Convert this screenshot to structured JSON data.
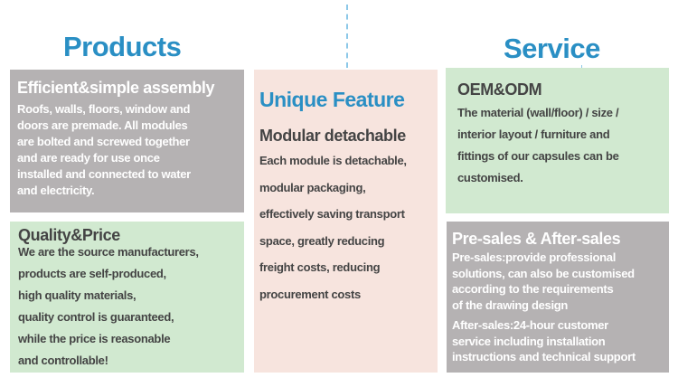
{
  "headers": {
    "products": "Products",
    "service": "Service"
  },
  "assembly": {
    "heading": "Efficient&simple assembly",
    "lines": [
      "Roofs, walls, floors, window and",
      "doors are premade. All modules",
      "are bolted and screwed together",
      "and are ready for use once",
      "installed and connected to water",
      "and electricity."
    ]
  },
  "quality": {
    "heading": "Quality&Price",
    "lines": [
      "We are the source manufacturers,",
      "products are self-produced,",
      "high quality materials,",
      "quality control is guaranteed,",
      "while the price is reasonable",
      "and controllable!"
    ]
  },
  "feature": {
    "heading": "Unique Feature",
    "subheading": "Modular detachable",
    "lines": [
      "Each module is detachable,",
      "modular packaging,",
      "effectively saving transport",
      "space, greatly reducing",
      "freight costs, reducing",
      "procurement costs"
    ]
  },
  "oem": {
    "heading": "OEM&ODM",
    "lines": [
      "The material (wall/floor) / size /",
      "interior layout / furniture and",
      "fittings of our capsules can be",
      "customised."
    ]
  },
  "sales": {
    "heading": "Pre-sales & After-sales",
    "pre_lines": [
      "Pre-sales:provide professional",
      "solutions, can also be customised",
      "according to the requirements",
      "of the drawing design"
    ],
    "after_lines": [
      "After-sales:24-hour customer",
      "service including installation",
      "instructions and technical support"
    ]
  },
  "colors": {
    "accent": "#2a8fc4",
    "gray": "#b5b2b3",
    "green": "#d1e9d0",
    "pink": "#f7e4de"
  }
}
